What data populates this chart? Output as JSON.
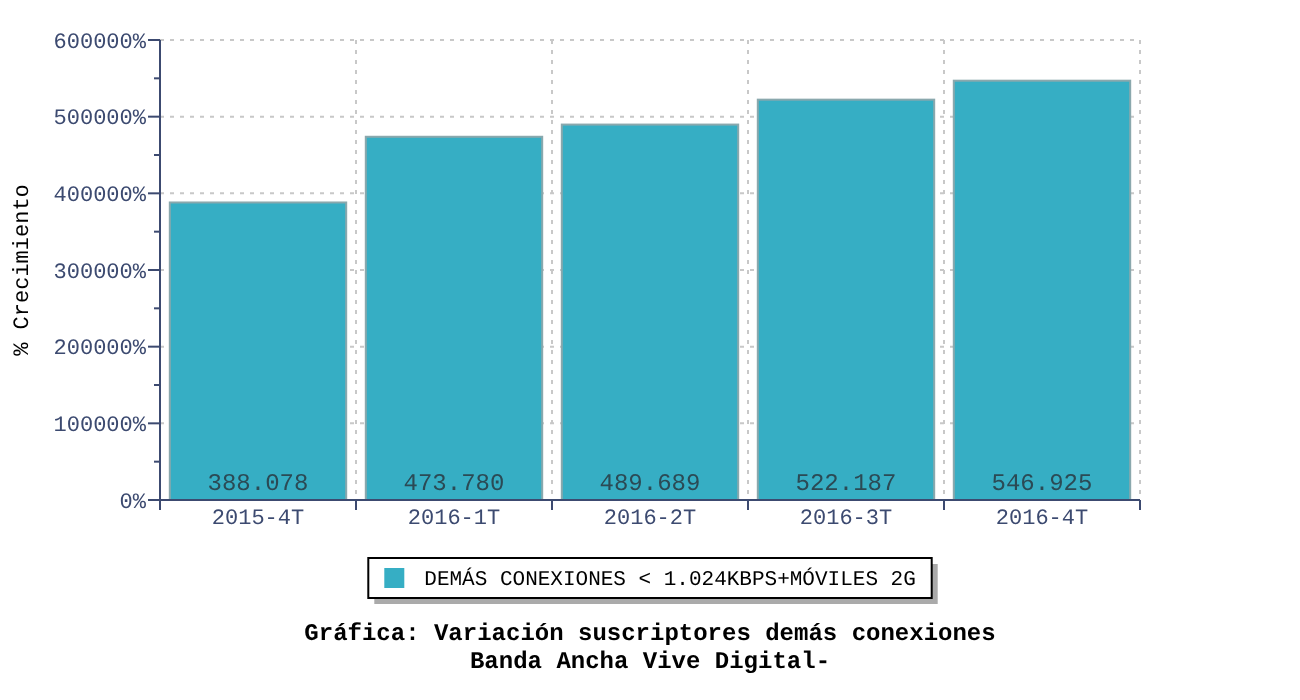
{
  "chart_data": {
    "type": "bar",
    "title": "Gráfica: Variación suscriptores demás conexiones",
    "subtitle": "Banda Ancha Vive Digital-",
    "ylabel": "% Crecimiento",
    "categories": [
      "2015-4T",
      "2016-1T",
      "2016-2T",
      "2016-3T",
      "2016-4T"
    ],
    "series": [
      {
        "name": "DEMÁS CONEXIONES < 1.024KBPS+MÓVILES 2G",
        "color": "#36aec4",
        "values": [
          388078,
          473780,
          489689,
          522187,
          546925
        ],
        "value_labels": [
          "388.078",
          "473.780",
          "489.689",
          "522.187",
          "546.925"
        ]
      }
    ],
    "ylim": [
      0,
      600000
    ],
    "yticks": [
      {
        "value": 0,
        "label": "0%"
      },
      {
        "value": 50000,
        "label": null
      },
      {
        "value": 100000,
        "label": "100000%"
      },
      {
        "value": 150000,
        "label": null
      },
      {
        "value": 200000,
        "label": "200000%"
      },
      {
        "value": 250000,
        "label": null
      },
      {
        "value": 300000,
        "label": "300000%"
      },
      {
        "value": 350000,
        "label": null
      },
      {
        "value": 400000,
        "label": "400000%"
      },
      {
        "value": 450000,
        "label": null
      },
      {
        "value": 500000,
        "label": "500000%"
      },
      {
        "value": 550000,
        "label": null
      },
      {
        "value": 600000,
        "label": "600000%"
      }
    ],
    "grid": true,
    "legend": "bottom"
  }
}
